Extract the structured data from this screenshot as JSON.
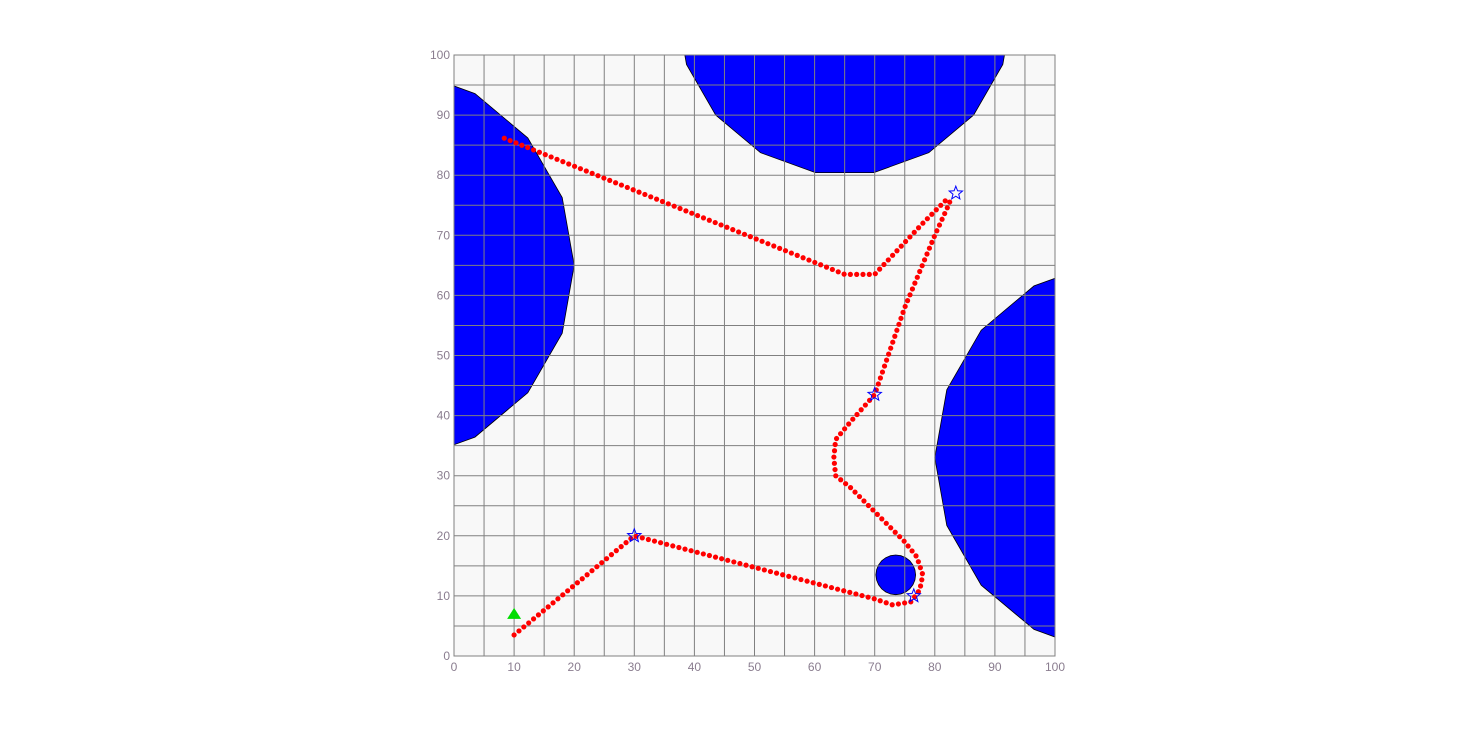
{
  "chart_data": {
    "type": "scatter",
    "title": "",
    "xlabel": "",
    "ylabel": "",
    "xlim": [
      0,
      100
    ],
    "ylim": [
      0,
      100
    ],
    "grid": true,
    "x_ticks": [
      "0",
      "10",
      "20",
      "30",
      "40",
      "50",
      "60",
      "70",
      "80",
      "90",
      "100"
    ],
    "y_ticks": [
      "0",
      "10",
      "20",
      "30",
      "40",
      "50",
      "60",
      "70",
      "80",
      "90",
      "100"
    ],
    "colors": {
      "plot_background": "#f8f8f8",
      "grid": "#808080",
      "obstacle": "#0000ff",
      "path": "#ff0000",
      "waypoint": "#0000ff",
      "start": "#00dd00",
      "tick_text": "#8a7d8f"
    },
    "obstacles": [
      {
        "shape": "disc",
        "center": [
          65,
          108
        ],
        "radius": 28
      },
      {
        "shape": "disc",
        "center": [
          -13,
          65
        ],
        "radius": 33
      },
      {
        "shape": "disc",
        "center": [
          113,
          33
        ],
        "radius": 33
      },
      {
        "shape": "disc",
        "center": [
          73.5,
          13.5
        ],
        "radius": 3.3
      }
    ],
    "start_marker": {
      "x": 10,
      "y": 7,
      "icon": "triangle-icon"
    },
    "waypoints": [
      {
        "x": 30,
        "y": 20
      },
      {
        "x": 76.5,
        "y": 10
      },
      {
        "x": 70,
        "y": 43.5
      },
      {
        "x": 83.5,
        "y": 77
      },
      {
        "x": 6.5,
        "y": 87
      }
    ],
    "path_vertices": [
      [
        10,
        3.5
      ],
      [
        30,
        20
      ],
      [
        70,
        9.5
      ],
      [
        73,
        8.5
      ],
      [
        76,
        9
      ],
      [
        77.5,
        11
      ],
      [
        78,
        13.5
      ],
      [
        77,
        16.5
      ],
      [
        75,
        19
      ],
      [
        70,
        24
      ],
      [
        66,
        28
      ],
      [
        63.5,
        30
      ],
      [
        63.2,
        33
      ],
      [
        63.5,
        36
      ],
      [
        66,
        39
      ],
      [
        70,
        43.5
      ],
      [
        75,
        58
      ],
      [
        80,
        70
      ],
      [
        82.5,
        75.5
      ],
      [
        82,
        76
      ],
      [
        78,
        72
      ],
      [
        70,
        63.5
      ],
      [
        65,
        63.5
      ],
      [
        7.5,
        86.5
      ]
    ],
    "path_spacing": 1.05
  }
}
